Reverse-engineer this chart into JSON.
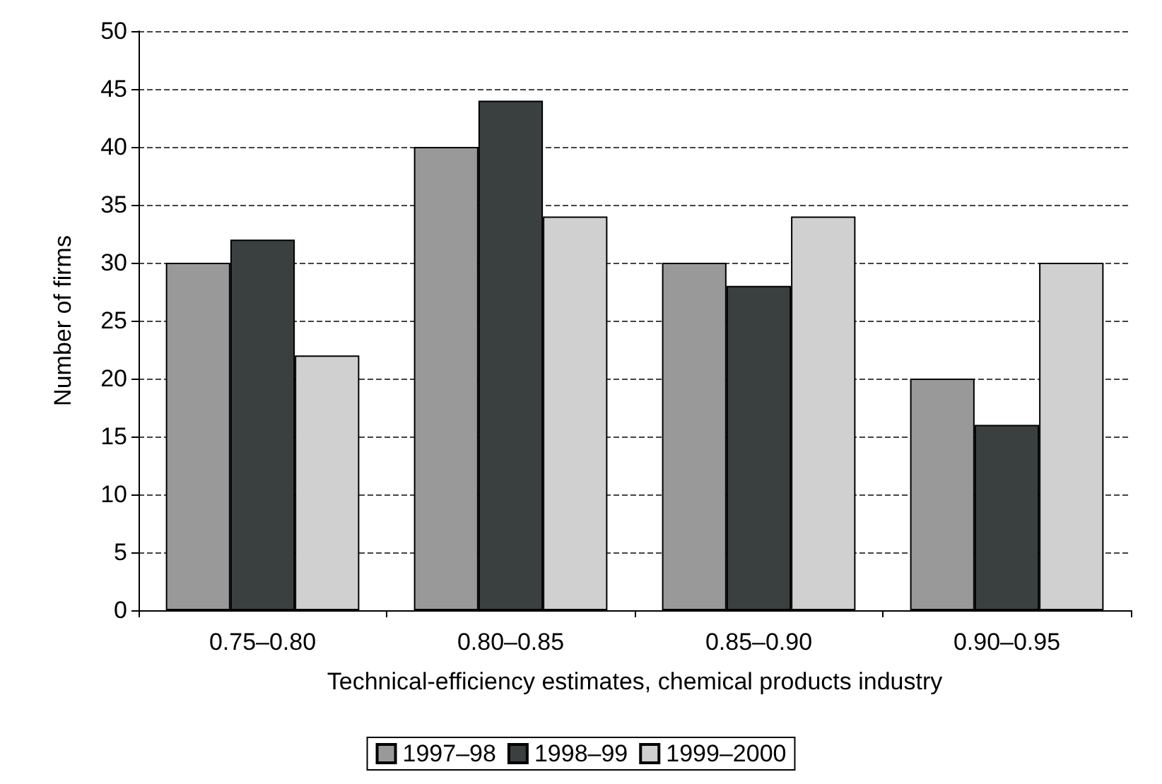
{
  "chart_data": {
    "type": "bar",
    "xlabel": "Technical-efficiency estimates, chemical products industry",
    "ylabel": "Number of firms",
    "categories": [
      "0.75–0.80",
      "0.80–0.85",
      "0.85–0.90",
      "0.90–0.95"
    ],
    "series": [
      {
        "name": "1997–98",
        "color": "#999999",
        "values": [
          30,
          40,
          30,
          20
        ]
      },
      {
        "name": "1998–99",
        "color": "#3a403f",
        "values": [
          32,
          44,
          28,
          16
        ]
      },
      {
        "name": "1999–2000",
        "color": "#d0d0d0",
        "values": [
          22,
          34,
          34,
          30
        ]
      }
    ],
    "ylim": [
      0,
      50
    ],
    "yticks": [
      0,
      5,
      10,
      15,
      20,
      25,
      30,
      35,
      40,
      45,
      50
    ],
    "grid": "y",
    "legend": "bottom"
  }
}
